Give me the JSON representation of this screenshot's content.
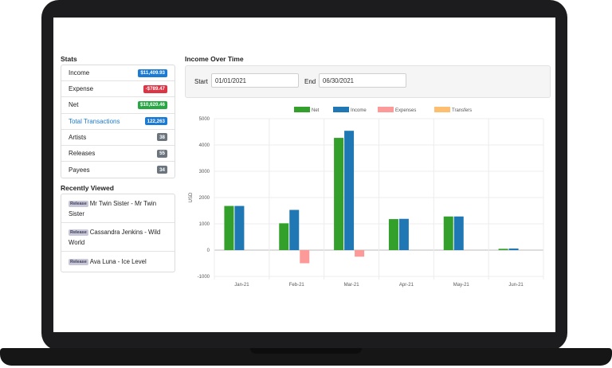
{
  "stats": {
    "title": "Stats",
    "items": [
      {
        "label": "Income",
        "value": "$11,409.93",
        "badge_color": "#1a7ad4",
        "link": false
      },
      {
        "label": "Expense",
        "value": "-$789.47",
        "badge_color": "#dc3545",
        "link": false
      },
      {
        "label": "Net",
        "value": "$10,620.46",
        "badge_color": "#28a745",
        "link": false
      },
      {
        "label": "Total Transactions",
        "value": "122,263",
        "badge_color": "#1a7ad4",
        "link": true
      },
      {
        "label": "Artists",
        "value": "38",
        "badge_color": "#6c757d",
        "link": false
      },
      {
        "label": "Releases",
        "value": "55",
        "badge_color": "#6c757d",
        "link": false
      },
      {
        "label": "Payees",
        "value": "34",
        "badge_color": "#6c757d",
        "link": false
      }
    ]
  },
  "recent": {
    "title": "Recently Viewed",
    "items": [
      {
        "tag": "Release",
        "text": "Mr Twin Sister - Mr Twin Sister"
      },
      {
        "tag": "Release",
        "text": "Cassandra Jenkins - Wild World"
      },
      {
        "tag": "Release",
        "text": "Ava Luna - Ice Level"
      }
    ]
  },
  "income": {
    "title": "Income Over Time",
    "start_label": "Start",
    "start_value": "01/01/2021",
    "end_label": "End",
    "end_value": "06/30/2021"
  },
  "chart_data": {
    "type": "bar",
    "categories": [
      "Jan-21",
      "Feb-21",
      "Mar-21",
      "Apr-21",
      "May-21",
      "Jun-21"
    ],
    "ylabel": "USD",
    "ylim": [
      -1000,
      5000
    ],
    "yticks": [
      5000,
      4000,
      3000,
      2000,
      1000,
      0,
      -1000
    ],
    "grid": true,
    "legend_position": "top",
    "series": [
      {
        "name": "Net",
        "color": "#33a02c",
        "values": [
          1680,
          1020,
          4270,
          1180,
          1280,
          50
        ]
      },
      {
        "name": "Income",
        "color": "#1f78b4",
        "values": [
          1680,
          1530,
          4540,
          1190,
          1280,
          60
        ]
      },
      {
        "name": "Expenses",
        "color": "#fb9a99",
        "values": [
          0,
          -500,
          -250,
          0,
          0,
          0
        ]
      },
      {
        "name": "Transfers",
        "color": "#fdbf6f",
        "values": [
          0,
          0,
          0,
          0,
          0,
          0
        ]
      }
    ]
  }
}
